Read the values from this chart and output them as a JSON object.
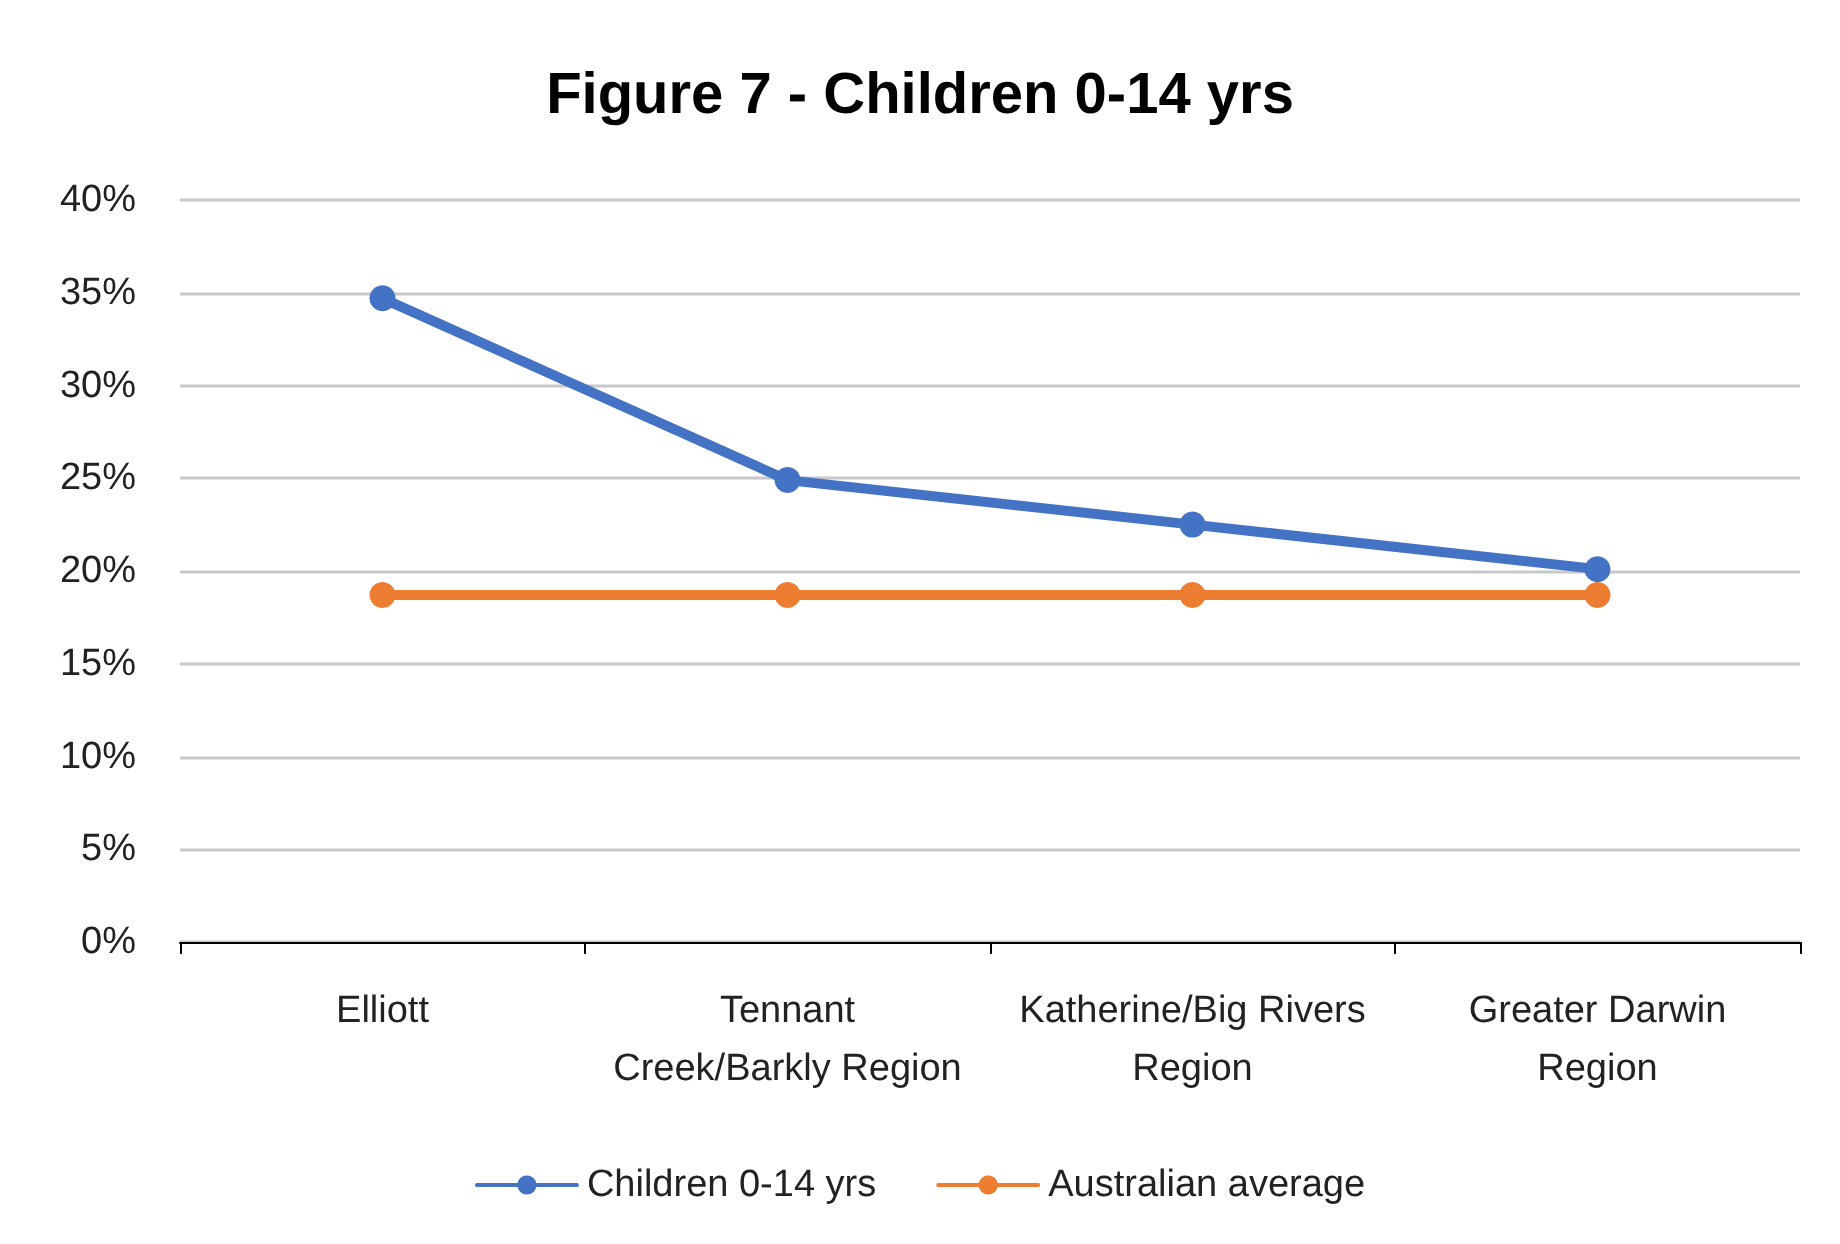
{
  "chart_data": {
    "type": "line",
    "title": "Figure 7 - Children 0-14 yrs",
    "categories": [
      "Elliott",
      "Tennant\nCreek/Barkly Region",
      "Katherine/Big Rivers\nRegion",
      "Greater Darwin\nRegion"
    ],
    "series": [
      {
        "name": "Children 0-14 yrs",
        "color": "#4472c4",
        "values": [
          34.7,
          24.9,
          22.5,
          20.1
        ]
      },
      {
        "name": "Australian average",
        "color": "#ed7d31",
        "values": [
          18.7,
          18.7,
          18.7,
          18.7
        ]
      }
    ],
    "ylim": [
      0,
      40
    ],
    "yticks": [
      {
        "value": 0,
        "label": "0%"
      },
      {
        "value": 5,
        "label": "5%"
      },
      {
        "value": 10,
        "label": "10%"
      },
      {
        "value": 15,
        "label": "15%"
      },
      {
        "value": 20,
        "label": "20%"
      },
      {
        "value": 25,
        "label": "25%"
      },
      {
        "value": 30,
        "label": "30%"
      },
      {
        "value": 35,
        "label": "35%"
      },
      {
        "value": 40,
        "label": "40%"
      }
    ],
    "grid": "y",
    "legend": "bottom",
    "marker": "circle",
    "line_style": "solid"
  }
}
